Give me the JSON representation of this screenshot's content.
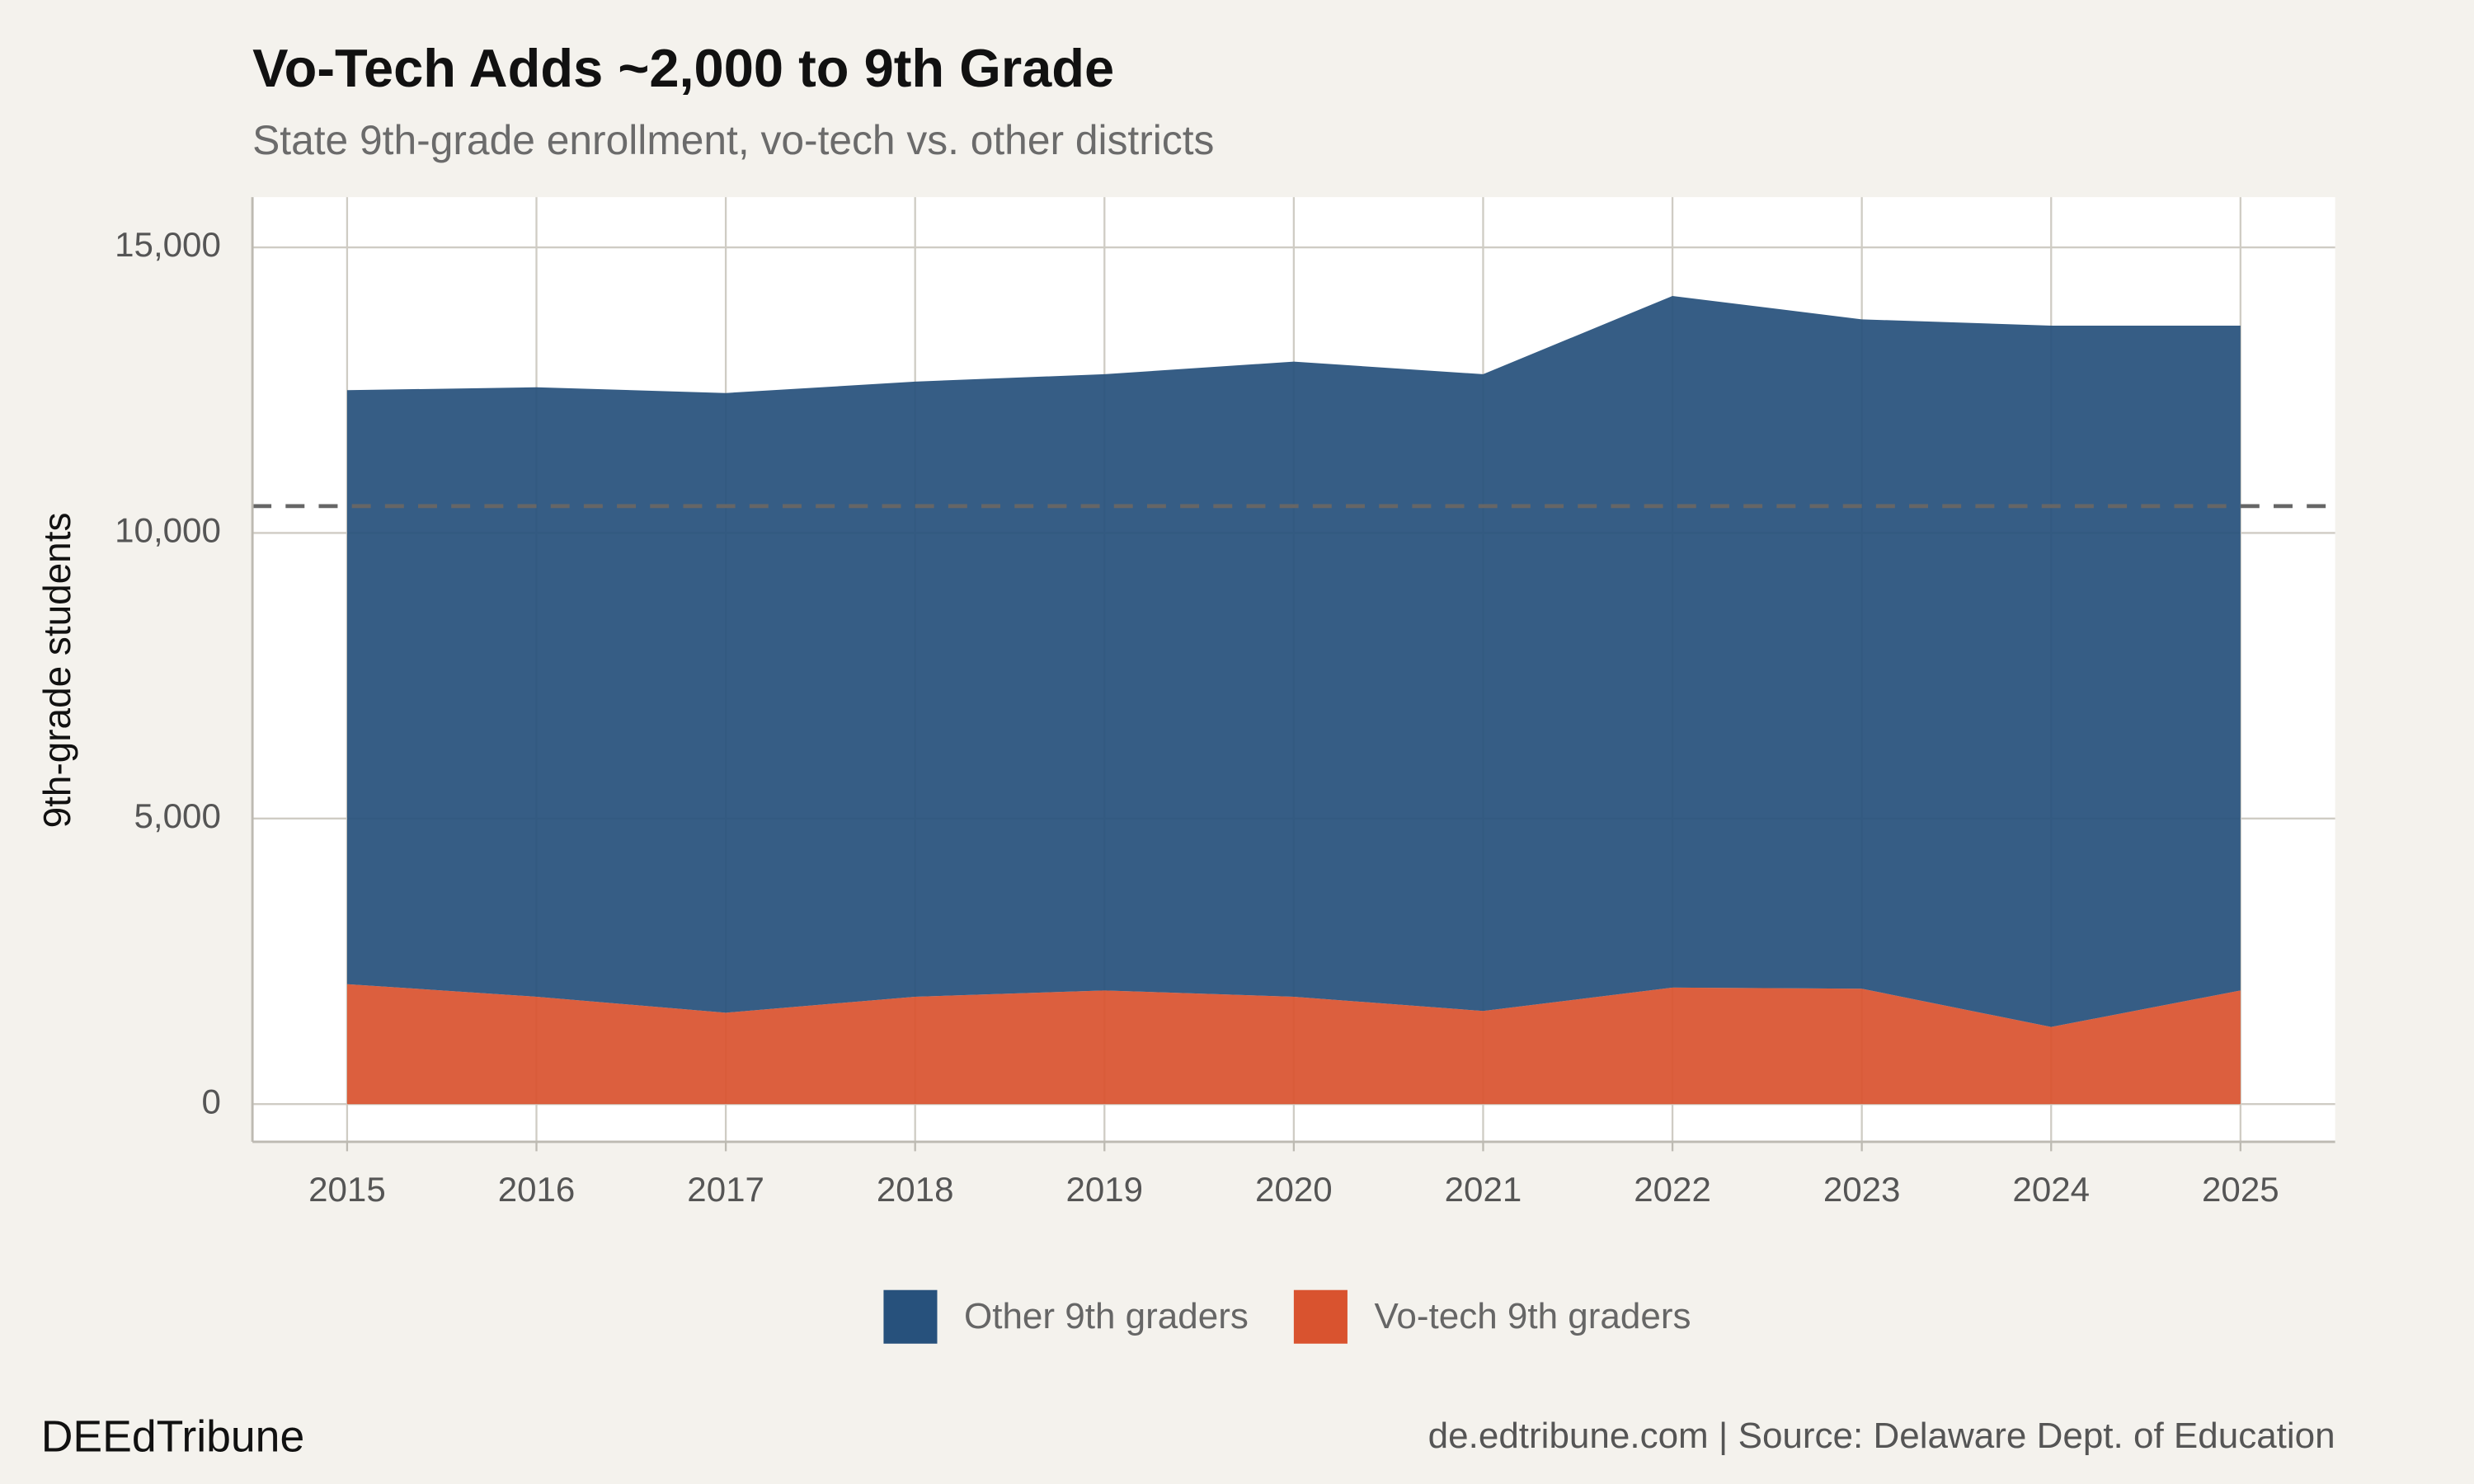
{
  "chart_data": {
    "type": "stacked_area",
    "title": "Vo-Tech Adds ~2,000 to 9th Grade",
    "subtitle": "State 9th-grade enrollment, vo-tech vs. other districts",
    "y_label": "9th-grade students",
    "caption_left": "DEEdTribune",
    "caption_right": "de.edtribune.com | Source: Delaware Dept. of Education",
    "x": [
      2015,
      2016,
      2017,
      2018,
      2019,
      2020,
      2021,
      2022,
      2023,
      2024,
      2025
    ],
    "series": [
      {
        "name": "Vo-tech 9th graders",
        "color": "#d9532f",
        "values": [
          2100,
          1880,
          1600,
          1880,
          1990,
          1880,
          1630,
          2040,
          2020,
          1350,
          1990
        ]
      },
      {
        "name": "Other 9th graders",
        "color": "#27517c",
        "values": [
          10400,
          10670,
          10850,
          10770,
          10790,
          11120,
          11150,
          12110,
          11720,
          12280,
          11640
        ]
      }
    ],
    "reference_line": 10470,
    "xlim": [
      2014.5,
      2025.5
    ],
    "xticks": [
      2015,
      2016,
      2017,
      2018,
      2019,
      2020,
      2021,
      2022,
      2023,
      2024,
      2025
    ],
    "ylim": [
      -660,
      15880
    ],
    "yticks": [
      0,
      {
        "value": 5000,
        "label": "5,000"
      },
      {
        "value": 10000,
        "label": "10,000"
      },
      {
        "value": 15000,
        "label": "15,000"
      }
    ],
    "grid": true,
    "legend": "bottom"
  }
}
